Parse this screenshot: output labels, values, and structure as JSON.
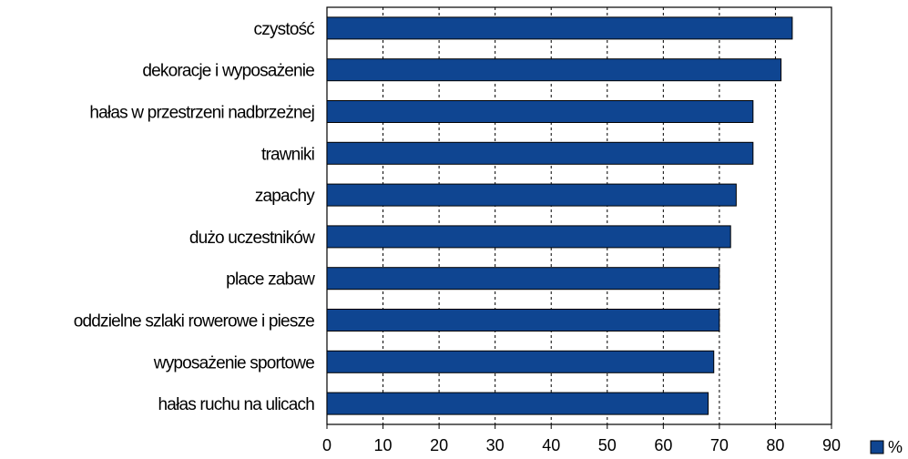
{
  "chart_data": {
    "type": "bar",
    "orientation": "horizontal",
    "categories": [
      "czystość",
      "dekoracje i wyposażenie",
      "hałas w przestrzeni nadbrzeżnej",
      "trawniki",
      "zapachy",
      "dużo uczestników",
      "place zabaw",
      "oddzielne szlaki rowerowe i piesze",
      "wyposażenie sportowe",
      "hałas ruchu na ulicach"
    ],
    "series": [
      {
        "name": "%",
        "values": [
          83,
          81,
          76,
          76,
          73,
          72,
          70,
          70,
          69,
          68
        ],
        "color": "#0f4591"
      }
    ],
    "xlim": [
      0,
      90
    ],
    "xticks": [
      0,
      10,
      20,
      30,
      40,
      50,
      60,
      70,
      80,
      90
    ],
    "grid": "vertical dashed",
    "legend": {
      "position": "bottom-right",
      "label": "%"
    },
    "title": "",
    "xlabel": "",
    "ylabel": ""
  }
}
